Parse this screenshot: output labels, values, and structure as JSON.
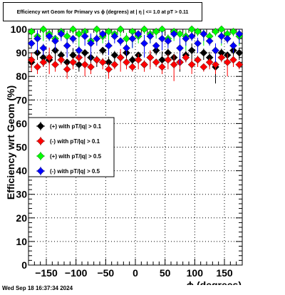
{
  "chart_data": {
    "type": "scatter",
    "title": "Efficiency wrt Geom for Primary vs ϕ (degrees) at | η | <= 1.0 at pT > 0.11",
    "xlabel": "ϕ (degrees)",
    "ylabel": "Efficiency wrt Geom (%)",
    "xlim": [
      -180,
      180
    ],
    "ylim": [
      0,
      100
    ],
    "x_ticks": [
      -150,
      -100,
      -50,
      0,
      50,
      100,
      150
    ],
    "x_tick_labels": [
      "−150",
      "−100",
      "−50",
      "0",
      "50",
      "100",
      "150"
    ],
    "y_ticks": [
      0,
      10,
      20,
      30,
      40,
      50,
      60,
      70,
      80,
      90,
      100
    ],
    "grid": true,
    "legend_position": "middle-left",
    "series": [
      {
        "name": "(+) with pT/|q| > 0.1",
        "color": "#000000",
        "x": [
          -175,
          -165,
          -155,
          -145,
          -135,
          -125,
          -115,
          -105,
          -95,
          -85,
          -75,
          -65,
          -55,
          -45,
          -35,
          -25,
          -15,
          -5,
          5,
          15,
          25,
          35,
          45,
          55,
          65,
          75,
          85,
          95,
          105,
          115,
          125,
          135,
          145,
          155,
          165,
          175
        ],
        "y": [
          86,
          90,
          88,
          87,
          91,
          89,
          86,
          89,
          85,
          90,
          88,
          87,
          91,
          86,
          89,
          88,
          90,
          87,
          89,
          85,
          88,
          91,
          87,
          90,
          88,
          86,
          89,
          91,
          87,
          90,
          88,
          84,
          90,
          89,
          91,
          90
        ]
      },
      {
        "name": "(-) with pT/|q| > 0.1",
        "color": "#ff0000",
        "x": [
          -175,
          -165,
          -155,
          -145,
          -135,
          -125,
          -115,
          -105,
          -95,
          -85,
          -75,
          -65,
          -55,
          -45,
          -35,
          -25,
          -15,
          -5,
          5,
          15,
          25,
          35,
          45,
          55,
          65,
          75,
          85,
          95,
          105,
          115,
          125,
          135,
          145,
          155,
          165,
          175
        ],
        "y": [
          87,
          84,
          86,
          88,
          85,
          87,
          83,
          86,
          88,
          85,
          84,
          87,
          86,
          83,
          85,
          88,
          86,
          84,
          87,
          85,
          88,
          86,
          84,
          87,
          85,
          86,
          88,
          85,
          87,
          84,
          86,
          85,
          88,
          86,
          87,
          85
        ]
      },
      {
        "name": "(+) with pT/|q| > 0.5",
        "color": "#00ff00",
        "x": [
          -175,
          -165,
          -155,
          -145,
          -135,
          -125,
          -115,
          -105,
          -95,
          -85,
          -75,
          -65,
          -55,
          -45,
          -35,
          -25,
          -15,
          -5,
          5,
          15,
          25,
          35,
          45,
          55,
          65,
          75,
          85,
          95,
          105,
          115,
          125,
          135,
          145,
          155,
          165,
          175
        ],
        "y": [
          99,
          97,
          100,
          98,
          96,
          99,
          97,
          100,
          98,
          99,
          95,
          100,
          97,
          99,
          98,
          100,
          96,
          99,
          97,
          100,
          98,
          99,
          100,
          96,
          99,
          98,
          97,
          100,
          99,
          98,
          97,
          99,
          100,
          98,
          99,
          97
        ]
      },
      {
        "name": "(-) with pT/|q| > 0.5",
        "color": "#0000ff",
        "x": [
          -175,
          -165,
          -155,
          -145,
          -135,
          -125,
          -115,
          -105,
          -95,
          -85,
          -75,
          -65,
          -55,
          -45,
          -35,
          -25,
          -15,
          -5,
          5,
          15,
          25,
          35,
          45,
          55,
          65,
          75,
          85,
          95,
          105,
          115,
          125,
          135,
          145,
          155,
          165,
          175
        ],
        "y": [
          94,
          96,
          92,
          97,
          95,
          98,
          93,
          96,
          91,
          97,
          94,
          96,
          98,
          93,
          97,
          95,
          92,
          96,
          98,
          94,
          97,
          93,
          96,
          95,
          98,
          92,
          96,
          97,
          94,
          98,
          95,
          91,
          97,
          96,
          93,
          98
        ]
      }
    ]
  },
  "footer": {
    "timestamp": "Wed Sep 18 16:37:34 2024"
  }
}
